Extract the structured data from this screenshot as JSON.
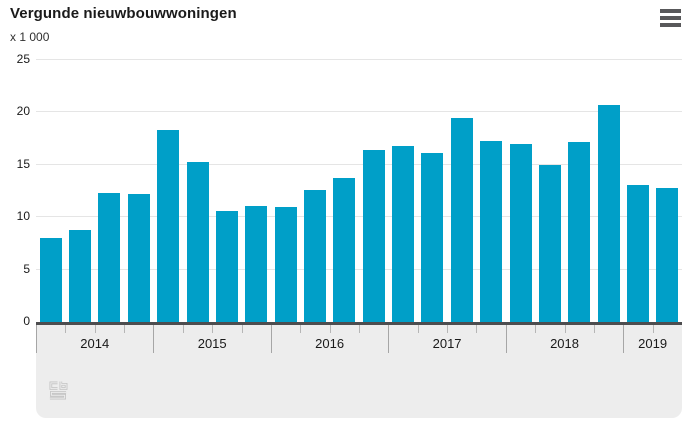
{
  "header": {
    "title": "Vergunde nieuwbouwwoningen",
    "unit_label": "x 1 000"
  },
  "colors": {
    "bar": "#009fc8",
    "axis_line": "#4d4d4f",
    "gridline": "#e5e5e5",
    "panel_bg": "#ededed",
    "menu_icon": "#58585a",
    "logo": "#c2c2c2",
    "text": "#1a1a1a"
  },
  "chart_data": {
    "type": "bar",
    "title": "Vergunde nieuwbouwwoningen",
    "ylabel": "x 1 000",
    "ylim": [
      0,
      25
    ],
    "yticks": [
      0,
      5,
      10,
      15,
      20,
      25
    ],
    "grid": true,
    "legend": "none",
    "x_unit": "quarter",
    "groups": [
      {
        "year": "2014",
        "values": [
          8.0,
          8.8,
          12.3,
          12.2
        ]
      },
      {
        "year": "2015",
        "values": [
          18.3,
          15.3,
          10.6,
          11.1
        ]
      },
      {
        "year": "2016",
        "values": [
          11.0,
          12.6,
          13.7,
          16.4
        ]
      },
      {
        "year": "2017",
        "values": [
          16.8,
          16.1,
          19.5,
          17.3
        ]
      },
      {
        "year": "2018",
        "values": [
          17.0,
          15.0,
          17.2,
          20.7
        ]
      },
      {
        "year": "2019",
        "values": [
          13.1,
          12.8
        ]
      }
    ]
  },
  "footer": {
    "logo_name": "cbs-logo"
  }
}
